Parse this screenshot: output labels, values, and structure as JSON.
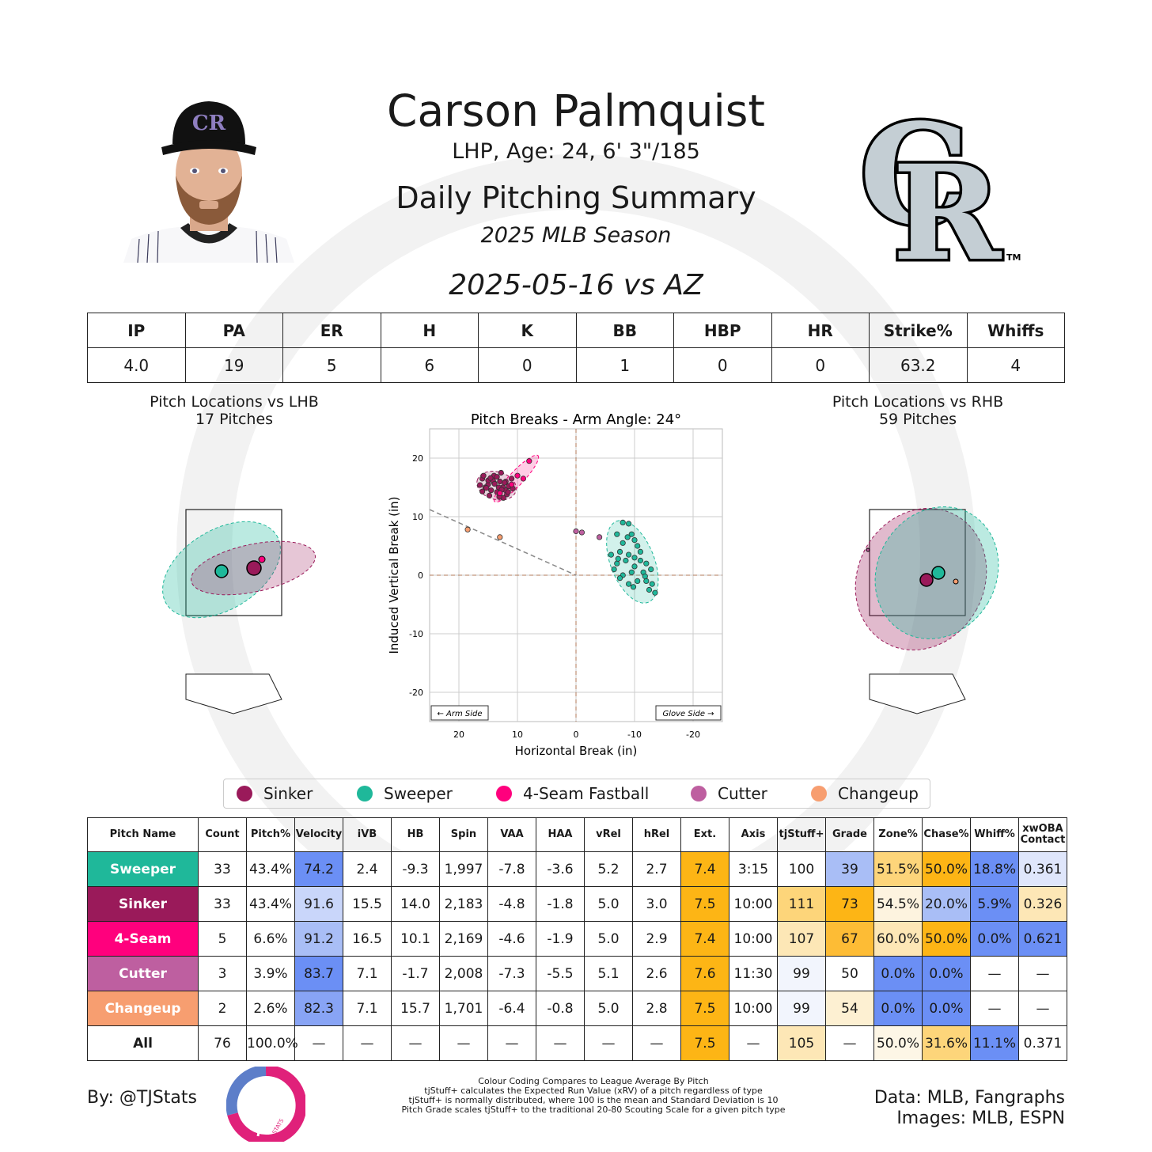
{
  "header": {
    "name": "Carson Palmquist",
    "bio": "LHP, Age: 24, 6' 3\"/185",
    "report": "Daily Pitching Summary",
    "season": "2025 MLB Season",
    "game": "2025-05-16 vs AZ"
  },
  "logo": {
    "team_mark": "CR",
    "tm": "TM"
  },
  "colors": {
    "Sinker": "#9a1a5a",
    "Sweeper": "#1fb89a",
    "4-Seam": "#ff007d",
    "Cutter": "#be5fa0",
    "Changeup": "#f79e70"
  },
  "statline": {
    "headers": [
      "IP",
      "PA",
      "ER",
      "H",
      "K",
      "BB",
      "HBP",
      "HR",
      "Strike%",
      "Whiffs"
    ],
    "values": [
      "4.0",
      "19",
      "5",
      "6",
      "0",
      "1",
      "0",
      "0",
      "63.2",
      "4"
    ]
  },
  "lhb": {
    "title": "Pitch Locations vs LHB",
    "subtitle": "17 Pitches"
  },
  "rhb": {
    "title": "Pitch Locations vs RHB",
    "subtitle": "59 Pitches"
  },
  "chart_data": {
    "type": "scatter",
    "title": "Pitch Breaks - Arm Angle: 24°",
    "xlabel": "Horizontal Break (in)",
    "ylabel": "Induced Vertical Break (in)",
    "xlim": [
      25,
      -25
    ],
    "ylim": [
      -25,
      25
    ],
    "xticks": [
      20,
      10,
      0,
      -10,
      -20
    ],
    "yticks": [
      20,
      10,
      0,
      -10,
      -20
    ],
    "grid": true,
    "arm_side_label": "← Arm Side",
    "glove_side_label": "Glove Side →",
    "series": [
      {
        "name": "Sinker",
        "color": "#9a1a5a",
        "points": [
          [
            16,
            16.5
          ],
          [
            15,
            15.5
          ],
          [
            14,
            17
          ],
          [
            13,
            16
          ],
          [
            12.5,
            15
          ],
          [
            14.5,
            14.5
          ],
          [
            15.5,
            15
          ],
          [
            13.5,
            16.8
          ],
          [
            12,
            16
          ],
          [
            11.5,
            15.2
          ],
          [
            13,
            14
          ],
          [
            14,
            15.8
          ],
          [
            15,
            16.2
          ],
          [
            16,
            14.3
          ],
          [
            12,
            14.5
          ],
          [
            13.2,
            15
          ],
          [
            14.2,
            16.2
          ],
          [
            11,
            16.5
          ],
          [
            12.8,
            17.5
          ],
          [
            15.8,
            17
          ],
          [
            13.5,
            14.2
          ],
          [
            11.8,
            13.8
          ],
          [
            14.8,
            13.6
          ],
          [
            12.4,
            13.2
          ],
          [
            10.8,
            14.8
          ],
          [
            13.9,
            15.6
          ],
          [
            16.4,
            15.4
          ],
          [
            12.2,
            15.8
          ],
          [
            11.6,
            14.2
          ],
          [
            14.6,
            16.6
          ],
          [
            13.1,
            13.4
          ],
          [
            15.3,
            14.9
          ],
          [
            12.7,
            14.6
          ]
        ]
      },
      {
        "name": "4-Seam",
        "color": "#ff007d",
        "points": [
          [
            8,
            19.5
          ],
          [
            10,
            17
          ],
          [
            11,
            15.5
          ],
          [
            9,
            16.5
          ],
          [
            13,
            14
          ]
        ]
      },
      {
        "name": "Sweeper",
        "color": "#1fb89a",
        "points": [
          [
            -8,
            9
          ],
          [
            -9,
            8.8
          ],
          [
            -7,
            7
          ],
          [
            -9.5,
            7
          ],
          [
            -10,
            6
          ],
          [
            -8,
            5.5
          ],
          [
            -10.5,
            5
          ],
          [
            -7.5,
            4
          ],
          [
            -9,
            3.5
          ],
          [
            -6,
            3.5
          ],
          [
            -8.5,
            2.5
          ],
          [
            -11,
            2.5
          ],
          [
            -7,
            2
          ],
          [
            -10,
            1.5
          ],
          [
            -12,
            2
          ],
          [
            -9.5,
            0.5
          ],
          [
            -11.5,
            0.5
          ],
          [
            -8,
            0
          ],
          [
            -10.5,
            -1
          ],
          [
            -12,
            -1
          ],
          [
            -9,
            -1.5
          ],
          [
            -13,
            -1.5
          ],
          [
            -7.5,
            -0.5
          ],
          [
            -12.5,
            -2.5
          ],
          [
            -13.5,
            -3
          ],
          [
            -10,
            3
          ],
          [
            -6.5,
            1
          ],
          [
            -8.8,
            6.5
          ],
          [
            -11,
            4
          ],
          [
            -12.8,
            1
          ],
          [
            -7.2,
            2.8
          ],
          [
            -9.8,
            -2
          ],
          [
            -11.8,
            -0.2
          ]
        ]
      },
      {
        "name": "Cutter",
        "color": "#be5fa0",
        "points": [
          [
            0,
            7.5
          ],
          [
            -1,
            7.3
          ],
          [
            -4,
            6.5
          ]
        ]
      },
      {
        "name": "Changeup",
        "color": "#f79e70",
        "points": [
          [
            18.5,
            7.8
          ],
          [
            13,
            6.5
          ]
        ]
      }
    ]
  },
  "legend": [
    "Sinker",
    "Sweeper",
    "4-Seam Fastball",
    "Cutter",
    "Changeup"
  ],
  "pitch_table": {
    "headers": [
      "Pitch Name",
      "Count",
      "Pitch%",
      "Velocity",
      "iVB",
      "HB",
      "Spin",
      "VAA",
      "HAA",
      "vRel",
      "hRel",
      "Ext.",
      "Axis",
      "tjStuff+",
      "Grade",
      "Zone%",
      "Chase%",
      "Whiff%",
      "xwOBA Contact"
    ],
    "rows": [
      [
        "Sweeper",
        "33",
        "43.4%",
        "74.2",
        "2.4",
        "-9.3",
        "1,997",
        "-7.8",
        "-3.6",
        "5.2",
        "2.7",
        "7.4",
        "3:15",
        "100",
        "39",
        "51.5%",
        "50.0%",
        "18.8%",
        "0.361"
      ],
      [
        "Sinker",
        "33",
        "43.4%",
        "91.6",
        "15.5",
        "14.0",
        "2,183",
        "-4.8",
        "-1.8",
        "5.0",
        "3.0",
        "7.5",
        "10:00",
        "111",
        "73",
        "54.5%",
        "20.0%",
        "5.9%",
        "0.326"
      ],
      [
        "4-Seam",
        "5",
        "6.6%",
        "91.2",
        "16.5",
        "10.1",
        "2,169",
        "-4.6",
        "-1.9",
        "5.0",
        "2.9",
        "7.4",
        "10:00",
        "107",
        "67",
        "60.0%",
        "50.0%",
        "0.0%",
        "0.621"
      ],
      [
        "Cutter",
        "3",
        "3.9%",
        "83.7",
        "7.1",
        "-1.7",
        "2,008",
        "-7.3",
        "-5.5",
        "5.1",
        "2.6",
        "7.6",
        "11:30",
        "99",
        "50",
        "0.0%",
        "0.0%",
        "—",
        "—"
      ],
      [
        "Changeup",
        "2",
        "2.6%",
        "82.3",
        "7.1",
        "15.7",
        "1,701",
        "-6.4",
        "-0.8",
        "5.0",
        "2.8",
        "7.5",
        "10:00",
        "99",
        "54",
        "0.0%",
        "0.0%",
        "—",
        "—"
      ],
      [
        "All",
        "76",
        "100.0%",
        "—",
        "—",
        "—",
        "—",
        "—",
        "—",
        "—",
        "—",
        "7.5",
        "—",
        "105",
        "—",
        "50.0%",
        "31.6%",
        "11.1%",
        "0.371"
      ]
    ],
    "cell_colors": [
      [
        "#1fb89a",
        "#fff",
        "#fff",
        "#6b8ff5",
        "#fff",
        "#fff",
        "#fff",
        "#fff",
        "#fff",
        "#fff",
        "#fff",
        "#fdb515",
        "#fff",
        "#fff",
        "#a9bef6",
        "#fdd57a",
        "#fdb515",
        "#6b8ff5",
        "#dfe6fb"
      ],
      [
        "#9a1a5a",
        "#fff",
        "#fff",
        "#c9d6fa",
        "#fff",
        "#fff",
        "#fff",
        "#fff",
        "#fff",
        "#fff",
        "#fff",
        "#fdb515",
        "#fff",
        "#fdd57a",
        "#fdb515",
        "#fdf3df",
        "#a9bef6",
        "#6b8ff5",
        "#fde7b6"
      ],
      [
        "#ff007d",
        "#fff",
        "#fff",
        "#a9bef6",
        "#fff",
        "#fff",
        "#fff",
        "#fff",
        "#fff",
        "#fff",
        "#fff",
        "#fdb515",
        "#fff",
        "#fde7b6",
        "#fdbc35",
        "#fde7b6",
        "#fdb515",
        "#6b8ff5",
        "#6b8ff5"
      ],
      [
        "#be5fa0",
        "#fff",
        "#fff",
        "#6b8ff5",
        "#fff",
        "#fff",
        "#fff",
        "#fff",
        "#fff",
        "#fff",
        "#fff",
        "#fdb515",
        "#fff",
        "#f2f5fd",
        "#fff",
        "#6b8ff5",
        "#6b8ff5",
        "#fff",
        "#fff"
      ],
      [
        "#f79e70",
        "#fff",
        "#fff",
        "#88a4f5",
        "#fff",
        "#fff",
        "#fff",
        "#fff",
        "#fff",
        "#fff",
        "#fff",
        "#fdb515",
        "#fff",
        "#f2f5fd",
        "#fdf0d2",
        "#6b8ff5",
        "#6b8ff5",
        "#fff",
        "#fff"
      ],
      [
        "#fff",
        "#fff",
        "#fff",
        "#fff",
        "#fff",
        "#fff",
        "#fff",
        "#fff",
        "#fff",
        "#fff",
        "#fff",
        "#fdb515",
        "#fff",
        "#fde7b6",
        "#fff",
        "#fdf6e6",
        "#fdd57a",
        "#6b8ff5",
        "#fff"
      ]
    ]
  },
  "footer": {
    "by": "By: @TJStats",
    "notes": [
      "Colour Coding Compares to League Average By Pitch",
      "tjStuff+ calculates the Expected Run Value (xRV) of a pitch regardless of type",
      "tjStuff+ is normally distributed, where 100 is the mean and Standard Deviation is 10",
      "Pitch Grade scales tjStuff+ to the traditional 20-80 Scouting Scale for a given pitch type"
    ],
    "data": "Data: MLB, Fangraphs",
    "images": "Images: MLB, ESPN",
    "tj_logo_text": "STATS"
  }
}
